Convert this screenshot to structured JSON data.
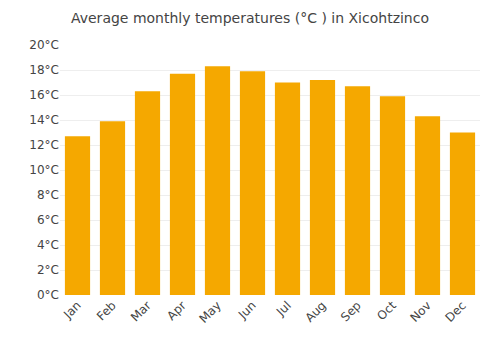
{
  "chart_data": {
    "type": "bar",
    "title": "Average monthly temperatures (°C ) in Xicohtzinco",
    "categories": [
      "Jan",
      "Feb",
      "Mar",
      "Apr",
      "May",
      "Jun",
      "Jul",
      "Aug",
      "Sep",
      "Oct",
      "Nov",
      "Dec"
    ],
    "values": [
      12.7,
      13.9,
      16.3,
      17.7,
      18.3,
      17.9,
      17.0,
      17.2,
      16.7,
      15.9,
      14.3,
      13.0
    ],
    "color": "#F5A800",
    "ylim": [
      0,
      20
    ],
    "yticks": [
      {
        "value": 0,
        "label": "0°C"
      },
      {
        "value": 2,
        "label": "2°C"
      },
      {
        "value": 4,
        "label": "4°C"
      },
      {
        "value": 6,
        "label": "6°C"
      },
      {
        "value": 8,
        "label": "8°C"
      },
      {
        "value": 10,
        "label": "10°C"
      },
      {
        "value": 12,
        "label": "12°C"
      },
      {
        "value": 14,
        "label": "14°C"
      },
      {
        "value": 16,
        "label": "16°C"
      },
      {
        "value": 18,
        "label": "18°C"
      },
      {
        "value": 20,
        "label": "20°C"
      }
    ],
    "grid": true
  }
}
